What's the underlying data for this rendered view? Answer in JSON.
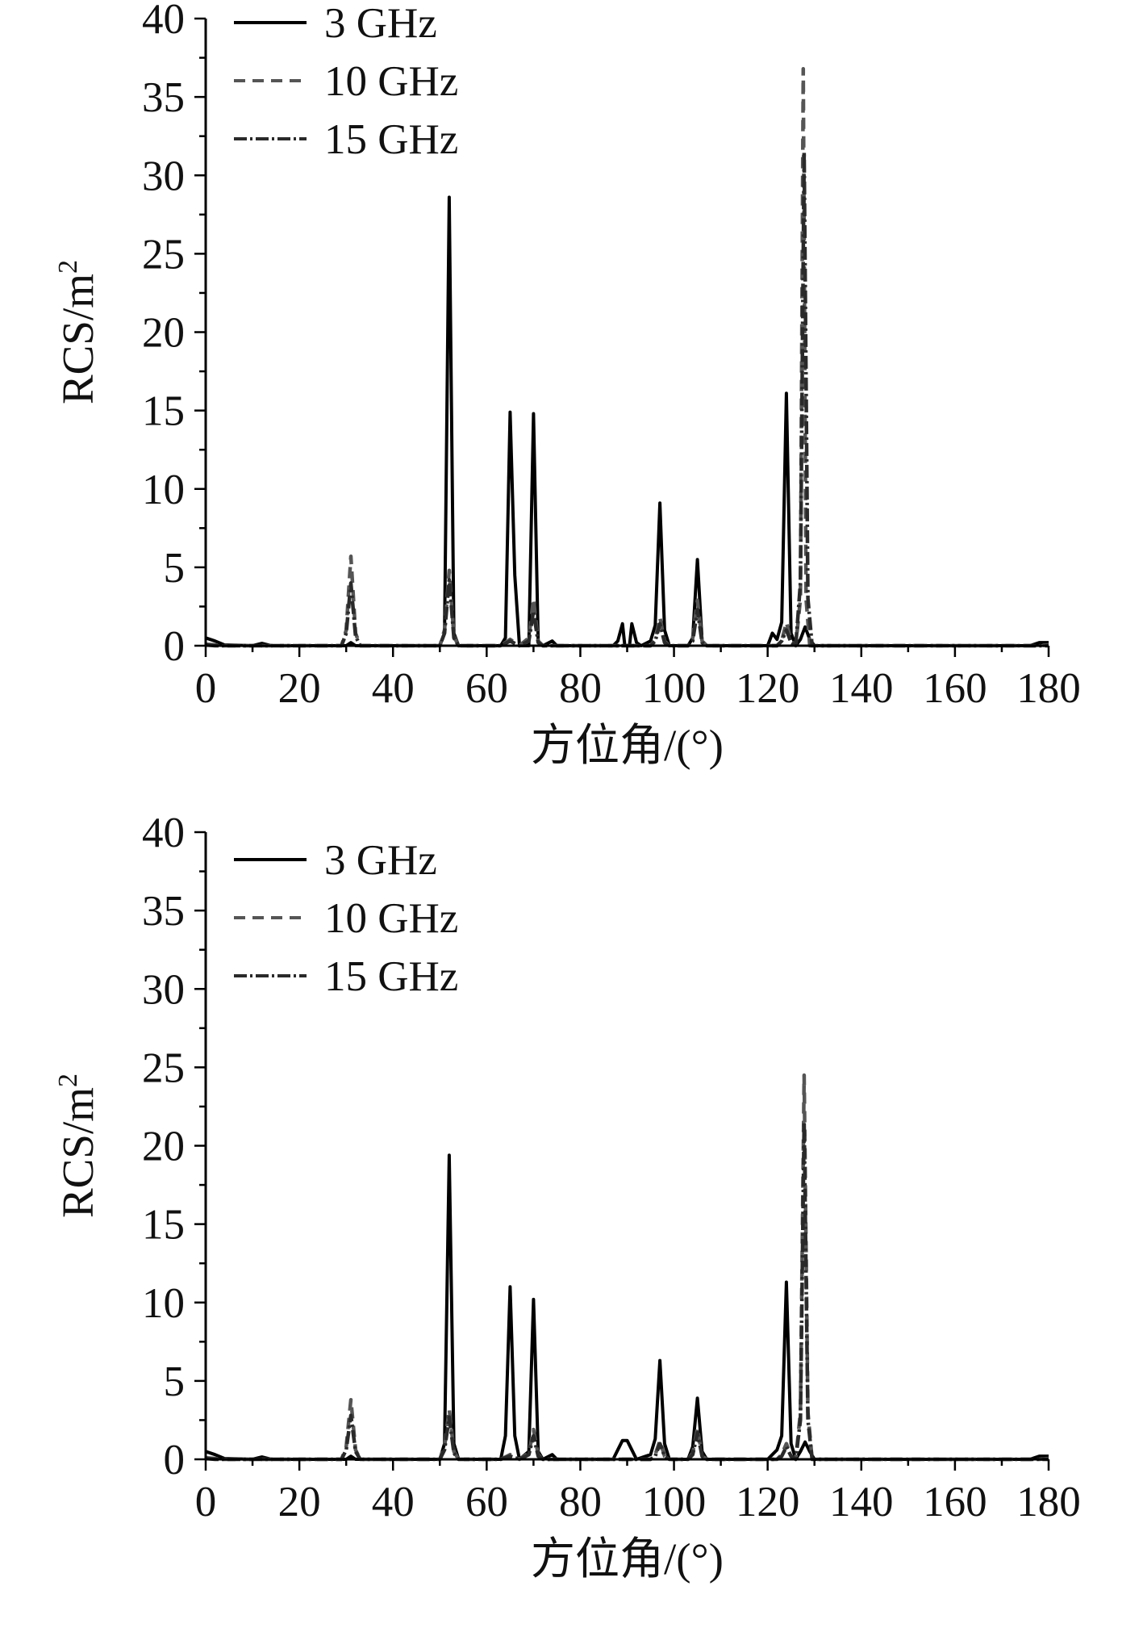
{
  "chart_data": [
    {
      "type": "line",
      "xlabel": "方位角/(°)",
      "ylabel": "RCS/m",
      "ylabel_sup": "2",
      "xlim": [
        0,
        180
      ],
      "ylim": [
        0,
        40
      ],
      "xticks": [
        0,
        20,
        40,
        60,
        80,
        100,
        120,
        140,
        160,
        180
      ],
      "yticks": [
        0,
        5,
        10,
        15,
        20,
        25,
        30,
        35,
        40
      ],
      "grid": false,
      "legend_position": "top-left",
      "series": [
        {
          "name": "3 GHz",
          "color": "#000000",
          "dash": "solid",
          "points": [
            [
              0,
              0.5
            ],
            [
              2,
              0.3
            ],
            [
              4,
              0.05
            ],
            [
              10,
              0.0
            ],
            [
              12,
              0.15
            ],
            [
              14,
              0.0
            ],
            [
              30,
              0.0
            ],
            [
              31,
              0.2
            ],
            [
              32,
              0.0
            ],
            [
              50,
              0.0
            ],
            [
              51,
              0.8
            ],
            [
              52,
              28.6
            ],
            [
              53,
              0.8
            ],
            [
              54,
              0.0
            ],
            [
              63,
              0.0
            ],
            [
              64,
              0.5
            ],
            [
              65,
              14.9
            ],
            [
              66,
              4.5
            ],
            [
              67,
              0.0
            ],
            [
              69,
              0.0
            ],
            [
              70,
              14.8
            ],
            [
              71,
              0.2
            ],
            [
              72,
              0.0
            ],
            [
              74,
              0.3
            ],
            [
              75,
              0.0
            ],
            [
              87,
              0.0
            ],
            [
              88,
              0.3
            ],
            [
              89,
              1.4
            ],
            [
              89.5,
              0.0
            ],
            [
              90.5,
              0.0
            ],
            [
              91,
              1.4
            ],
            [
              92,
              0.2
            ],
            [
              93,
              0.0
            ],
            [
              95,
              0.3
            ],
            [
              96,
              1.3
            ],
            [
              97,
              9.1
            ],
            [
              98,
              1.0
            ],
            [
              99,
              0.0
            ],
            [
              103,
              0.0
            ],
            [
              104,
              0.5
            ],
            [
              105,
              5.5
            ],
            [
              106,
              0.3
            ],
            [
              107,
              0.0
            ],
            [
              120,
              0.0
            ],
            [
              121,
              0.8
            ],
            [
              122,
              0.4
            ],
            [
              123,
              1.5
            ],
            [
              124,
              16.1
            ],
            [
              125,
              0.8
            ],
            [
              126,
              0.0
            ],
            [
              127,
              0.4
            ],
            [
              128,
              1.2
            ],
            [
              129,
              0.4
            ],
            [
              130,
              0.0
            ],
            [
              176,
              0.0
            ],
            [
              178,
              0.2
            ],
            [
              180,
              0.2
            ]
          ]
        },
        {
          "name": "10 GHz",
          "color": "#555555",
          "dash": "dashed",
          "points": [
            [
              0,
              0.1
            ],
            [
              2,
              0.05
            ],
            [
              4,
              0.0
            ],
            [
              29,
              0.0
            ],
            [
              30,
              1.0
            ],
            [
              31,
              5.7
            ],
            [
              32,
              0.8
            ],
            [
              33,
              0.0
            ],
            [
              50,
              0.0
            ],
            [
              51,
              1.0
            ],
            [
              52,
              4.8
            ],
            [
              53,
              0.6
            ],
            [
              54,
              0.0
            ],
            [
              63,
              0.0
            ],
            [
              65,
              0.4
            ],
            [
              67,
              0.0
            ],
            [
              69,
              0.5
            ],
            [
              70,
              3.0
            ],
            [
              71,
              0.3
            ],
            [
              72,
              0.0
            ],
            [
              95,
              0.0
            ],
            [
              96,
              0.4
            ],
            [
              97,
              1.8
            ],
            [
              98,
              0.3
            ],
            [
              99,
              0.0
            ],
            [
              103,
              0.0
            ],
            [
              104,
              0.5
            ],
            [
              105,
              2.9
            ],
            [
              106,
              0.3
            ],
            [
              107,
              0.0
            ],
            [
              122,
              0.0
            ],
            [
              123,
              0.3
            ],
            [
              124,
              1.5
            ],
            [
              125,
              0.3
            ],
            [
              126,
              0.0
            ],
            [
              127,
              3.0
            ],
            [
              127.6,
              36.8
            ],
            [
              128.2,
              3.0
            ],
            [
              129,
              0.0
            ],
            [
              178,
              0.0
            ],
            [
              180,
              0.05
            ]
          ]
        },
        {
          "name": "15 GHz",
          "color": "#2a2a2a",
          "dash": "dashdot",
          "points": [
            [
              0,
              0.05
            ],
            [
              2,
              0.0
            ],
            [
              29,
              0.0
            ],
            [
              30,
              0.8
            ],
            [
              31,
              4.0
            ],
            [
              32,
              0.6
            ],
            [
              33,
              0.0
            ],
            [
              50,
              0.0
            ],
            [
              51,
              0.8
            ],
            [
              52,
              4.2
            ],
            [
              53,
              0.5
            ],
            [
              54,
              0.0
            ],
            [
              63,
              0.0
            ],
            [
              65,
              0.3
            ],
            [
              67,
              0.0
            ],
            [
              69,
              0.3
            ],
            [
              70,
              2.2
            ],
            [
              71,
              0.2
            ],
            [
              72,
              0.0
            ],
            [
              95,
              0.0
            ],
            [
              96,
              0.3
            ],
            [
              97,
              1.4
            ],
            [
              98,
              0.2
            ],
            [
              99,
              0.0
            ],
            [
              103,
              0.0
            ],
            [
              104,
              0.3
            ],
            [
              105,
              2.3
            ],
            [
              106,
              0.2
            ],
            [
              107,
              0.0
            ],
            [
              122,
              0.0
            ],
            [
              123,
              0.3
            ],
            [
              124,
              1.0
            ],
            [
              125,
              0.2
            ],
            [
              126,
              0.0
            ],
            [
              127,
              4.0
            ],
            [
              127.8,
              31.5
            ],
            [
              128.6,
              3.0
            ],
            [
              129.5,
              0.0
            ],
            [
              180,
              0.0
            ]
          ]
        }
      ]
    },
    {
      "type": "line",
      "xlabel": "方位角/(°)",
      "ylabel": "RCS/m",
      "ylabel_sup": "2",
      "xlim": [
        0,
        180
      ],
      "ylim": [
        0,
        40
      ],
      "xticks": [
        0,
        20,
        40,
        60,
        80,
        100,
        120,
        140,
        160,
        180
      ],
      "yticks": [
        0,
        5,
        10,
        15,
        20,
        25,
        30,
        35,
        40
      ],
      "grid": false,
      "legend_position": "top-left",
      "series": [
        {
          "name": "3 GHz",
          "color": "#000000",
          "dash": "solid",
          "points": [
            [
              0,
              0.5
            ],
            [
              2,
              0.3
            ],
            [
              4,
              0.05
            ],
            [
              10,
              0.0
            ],
            [
              12,
              0.15
            ],
            [
              14,
              0.0
            ],
            [
              30,
              0.0
            ],
            [
              31,
              0.2
            ],
            [
              32,
              0.0
            ],
            [
              50,
              0.0
            ],
            [
              51,
              1.0
            ],
            [
              52,
              19.4
            ],
            [
              53,
              1.0
            ],
            [
              54,
              0.0
            ],
            [
              63,
              0.0
            ],
            [
              64,
              1.5
            ],
            [
              65,
              11.0
            ],
            [
              66,
              1.5
            ],
            [
              67,
              0.0
            ],
            [
              69,
              0.5
            ],
            [
              70,
              10.2
            ],
            [
              71,
              0.5
            ],
            [
              72,
              0.0
            ],
            [
              74,
              0.3
            ],
            [
              75,
              0.0
            ],
            [
              87,
              0.0
            ],
            [
              88,
              0.6
            ],
            [
              89,
              1.2
            ],
            [
              90,
              1.2
            ],
            [
              91,
              0.6
            ],
            [
              92,
              0.0
            ],
            [
              95,
              0.3
            ],
            [
              96,
              1.3
            ],
            [
              97,
              6.3
            ],
            [
              98,
              1.0
            ],
            [
              99,
              0.0
            ],
            [
              103,
              0.0
            ],
            [
              104,
              0.8
            ],
            [
              105,
              3.9
            ],
            [
              106,
              0.5
            ],
            [
              107,
              0.0
            ],
            [
              120,
              0.0
            ],
            [
              122,
              0.6
            ],
            [
              123,
              1.5
            ],
            [
              124,
              11.3
            ],
            [
              125,
              1.0
            ],
            [
              126,
              0.0
            ],
            [
              127,
              0.5
            ],
            [
              128,
              1.1
            ],
            [
              129,
              0.5
            ],
            [
              130,
              0.0
            ],
            [
              176,
              0.0
            ],
            [
              178,
              0.2
            ],
            [
              180,
              0.2
            ]
          ]
        },
        {
          "name": "10 GHz",
          "color": "#555555",
          "dash": "dashed",
          "points": [
            [
              0,
              0.1
            ],
            [
              2,
              0.05
            ],
            [
              4,
              0.0
            ],
            [
              29,
              0.0
            ],
            [
              30,
              0.8
            ],
            [
              31,
              3.8
            ],
            [
              32,
              0.6
            ],
            [
              33,
              0.0
            ],
            [
              50,
              0.0
            ],
            [
              51,
              0.8
            ],
            [
              52,
              3.2
            ],
            [
              53,
              0.5
            ],
            [
              54,
              0.0
            ],
            [
              63,
              0.0
            ],
            [
              65,
              0.3
            ],
            [
              67,
              0.0
            ],
            [
              69,
              0.4
            ],
            [
              70,
              1.9
            ],
            [
              71,
              0.3
            ],
            [
              72,
              0.0
            ],
            [
              95,
              0.0
            ],
            [
              96,
              0.3
            ],
            [
              97,
              1.2
            ],
            [
              98,
              0.2
            ],
            [
              99,
              0.0
            ],
            [
              103,
              0.0
            ],
            [
              104,
              0.4
            ],
            [
              105,
              2.0
            ],
            [
              106,
              0.2
            ],
            [
              107,
              0.0
            ],
            [
              122,
              0.0
            ],
            [
              123,
              0.3
            ],
            [
              124,
              1.0
            ],
            [
              125,
              0.2
            ],
            [
              126,
              0.0
            ],
            [
              127,
              3.0
            ],
            [
              127.8,
              24.5
            ],
            [
              128.6,
              3.0
            ],
            [
              129.5,
              0.0
            ],
            [
              178,
              0.0
            ],
            [
              180,
              0.05
            ]
          ]
        },
        {
          "name": "15 GHz",
          "color": "#2a2a2a",
          "dash": "dashdot",
          "points": [
            [
              0,
              0.05
            ],
            [
              2,
              0.0
            ],
            [
              29,
              0.0
            ],
            [
              30,
              0.6
            ],
            [
              31,
              2.8
            ],
            [
              32,
              0.5
            ],
            [
              33,
              0.0
            ],
            [
              50,
              0.0
            ],
            [
              51,
              0.6
            ],
            [
              52,
              2.7
            ],
            [
              53,
              0.4
            ],
            [
              54,
              0.0
            ],
            [
              63,
              0.0
            ],
            [
              65,
              0.2
            ],
            [
              67,
              0.0
            ],
            [
              69,
              0.3
            ],
            [
              70,
              1.5
            ],
            [
              71,
              0.2
            ],
            [
              72,
              0.0
            ],
            [
              95,
              0.0
            ],
            [
              96,
              0.2
            ],
            [
              97,
              1.0
            ],
            [
              98,
              0.2
            ],
            [
              99,
              0.0
            ],
            [
              103,
              0.0
            ],
            [
              104,
              0.3
            ],
            [
              105,
              1.7
            ],
            [
              106,
              0.2
            ],
            [
              107,
              0.0
            ],
            [
              122,
              0.0
            ],
            [
              123,
              0.2
            ],
            [
              124,
              0.8
            ],
            [
              125,
              0.2
            ],
            [
              126,
              0.0
            ],
            [
              127,
              2.5
            ],
            [
              127.8,
              21.5
            ],
            [
              128.6,
              2.5
            ],
            [
              129.5,
              0.0
            ],
            [
              180,
              0.0
            ]
          ]
        }
      ]
    }
  ]
}
